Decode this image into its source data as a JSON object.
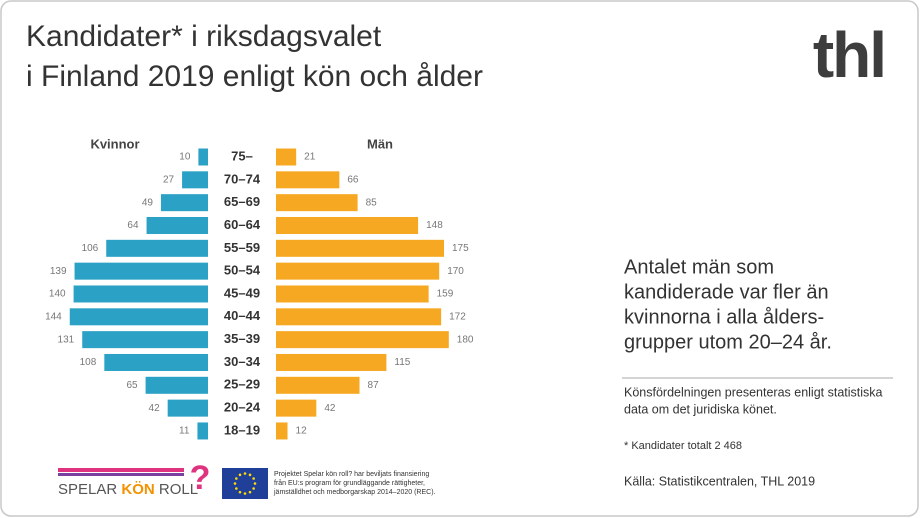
{
  "chart_data": {
    "type": "pyramid",
    "title": [
      "Kandidater* i riksdagsvalet",
      "i Finland 2019 enligt kön och ålder"
    ],
    "categories": [
      "75–",
      "70–74",
      "65–69",
      "60–64",
      "55–59",
      "50–54",
      "45–49",
      "40–44",
      "35–39",
      "30–34",
      "25–29",
      "20–24",
      "18–19"
    ],
    "series": [
      {
        "name": "Kvinnor",
        "color": "#2aa1c5",
        "values": [
          10,
          27,
          49,
          64,
          106,
          139,
          140,
          144,
          131,
          108,
          65,
          42,
          11
        ]
      },
      {
        "name": "Män",
        "color": "#f7a823",
        "values": [
          21,
          66,
          85,
          148,
          175,
          170,
          159,
          172,
          180,
          115,
          87,
          42,
          12
        ]
      }
    ],
    "annotation": [
      "Antalet män som",
      "kandiderade var fler än",
      "kvinnorna i alla ålders-",
      "grupper utom 20–24 år."
    ],
    "note": [
      "Könsfördelningen presenteras enligt statistiska",
      "data om det juridiska könet."
    ],
    "footnote": "* Kandidater totalt 2 468",
    "source": "Källa: Statistikcentralen, THL 2019"
  },
  "logos": {
    "thl": "thl",
    "project": [
      "SPELAR",
      "KÖN",
      "ROLL"
    ],
    "question": "?",
    "eu_text": [
      "Projektet Spelar kön roll? har beviljats finansiering",
      "från EU:s program för grundläggande rättigheter,",
      "jämställdhet och medborgarskap 2014–2020 (REC)."
    ]
  }
}
